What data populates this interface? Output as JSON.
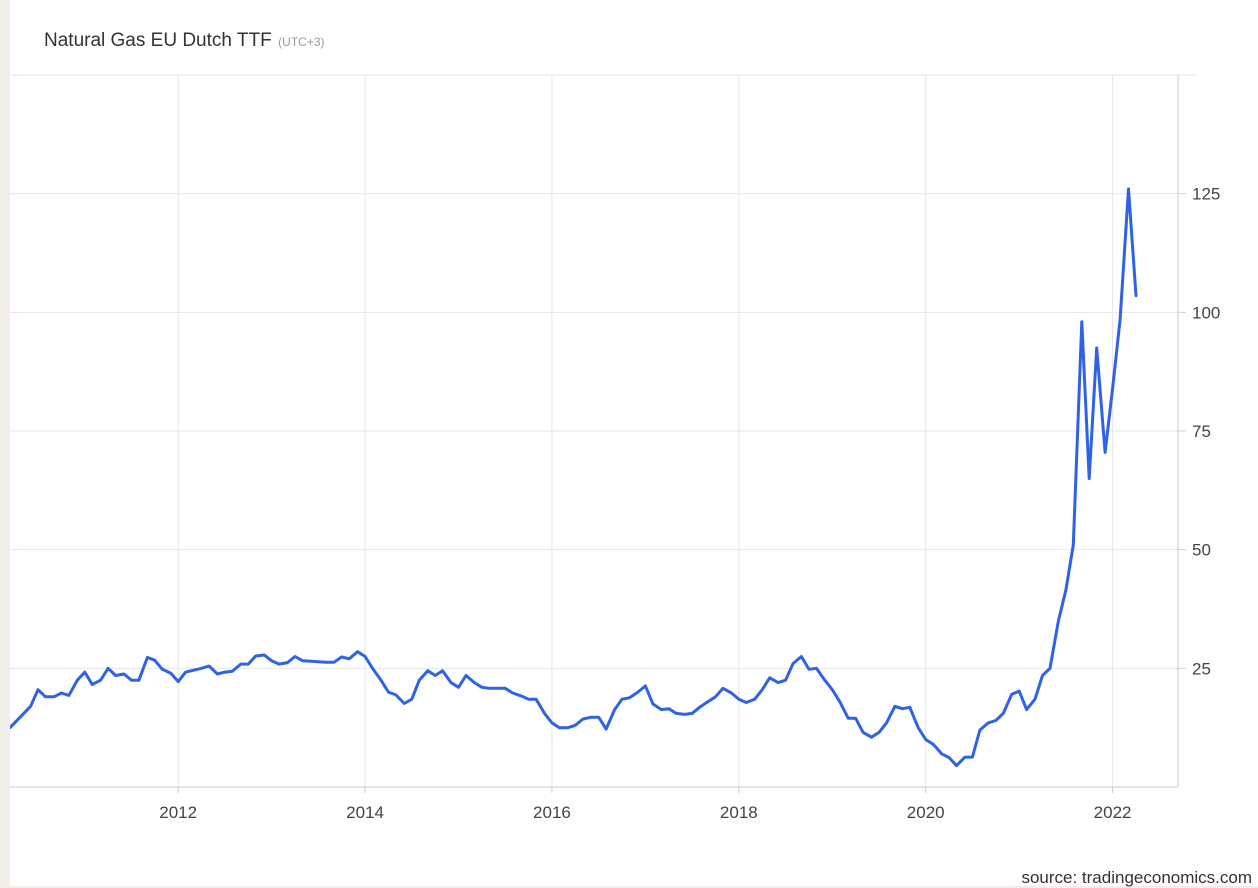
{
  "header": {
    "title": "Natural Gas EU Dutch TTF",
    "timezone": "(UTC+3)"
  },
  "footer": {
    "source": "source: tradingeconomics.com"
  },
  "colors": {
    "line": "#2f62e6",
    "grid": "#e6e6e6",
    "axis_text": "#444444",
    "background": "#ffffff"
  },
  "chart_data": {
    "type": "line",
    "title": "Natural Gas EU Dutch TTF",
    "xlabel": "",
    "ylabel": "",
    "x_ticks": [
      2012,
      2014,
      2016,
      2018,
      2020,
      2022
    ],
    "x_tick_labels": [
      "2012",
      "2014",
      "2016",
      "2018",
      "2020",
      "2022"
    ],
    "y_ticks": [
      25,
      50,
      75,
      100,
      125
    ],
    "y_tick_labels": [
      "25",
      "50",
      "75",
      "100",
      "125"
    ],
    "ylim": [
      0,
      150
    ],
    "xlim": [
      2010.2,
      2022.7
    ],
    "grid": true,
    "y_axis_position": "right",
    "legend": "none",
    "series": [
      {
        "x": [
          2010.2,
          2010.42,
          2010.5,
          2010.58,
          2010.67,
          2010.75,
          2010.83,
          2010.92,
          2011.0,
          2011.08,
          2011.17,
          2011.25,
          2011.33,
          2011.42,
          2011.5,
          2011.58,
          2011.67,
          2011.75,
          2011.83,
          2011.92,
          2012.0,
          2012.08,
          2012.25,
          2012.33,
          2012.42,
          2012.5,
          2012.58,
          2012.67,
          2012.75,
          2012.83,
          2012.92,
          2013.0,
          2013.08,
          2013.17,
          2013.25,
          2013.33,
          2013.42,
          2013.5,
          2013.58,
          2013.67,
          2013.75,
          2013.83,
          2013.92,
          2014.0,
          2014.08,
          2014.17,
          2014.25,
          2014.33,
          2014.42,
          2014.5,
          2014.58,
          2014.67,
          2014.75,
          2014.83,
          2014.92,
          2015.0,
          2015.08,
          2015.17,
          2015.25,
          2015.33,
          2015.42,
          2015.5,
          2015.58,
          2015.67,
          2015.75,
          2015.83,
          2015.92,
          2016.0,
          2016.08,
          2016.17,
          2016.25,
          2016.33,
          2016.42,
          2016.5,
          2016.58,
          2016.67,
          2016.75,
          2016.83,
          2016.92,
          2017.0,
          2017.08,
          2017.17,
          2017.25,
          2017.33,
          2017.42,
          2017.5,
          2017.58,
          2017.67,
          2017.75,
          2017.83,
          2017.92,
          2018.0,
          2018.08,
          2018.17,
          2018.25,
          2018.33,
          2018.42,
          2018.5,
          2018.58,
          2018.67,
          2018.75,
          2018.83,
          2018.92,
          2019.0,
          2019.08,
          2019.17,
          2019.25,
          2019.33,
          2019.42,
          2019.5,
          2019.58,
          2019.67,
          2019.75,
          2019.83,
          2019.92,
          2020.0,
          2020.08,
          2020.17,
          2020.25,
          2020.33,
          2020.42,
          2020.5,
          2020.58,
          2020.67,
          2020.75,
          2020.83,
          2020.92,
          2021.0,
          2021.08,
          2021.17,
          2021.25,
          2021.33,
          2021.42,
          2021.5,
          2021.58,
          2021.67,
          2021.75,
          2021.83,
          2021.92,
          2022.0,
          2022.08,
          2022.17,
          2022.25
        ],
        "y": [
          12.5,
          17.0,
          20.5,
          19.0,
          19.0,
          19.8,
          19.3,
          22.5,
          24.2,
          21.6,
          22.5,
          25.0,
          23.5,
          23.8,
          22.5,
          22.5,
          27.3,
          26.7,
          24.8,
          24.0,
          22.2,
          24.2,
          25.0,
          25.5,
          23.8,
          24.2,
          24.4,
          25.9,
          25.9,
          27.6,
          27.8,
          26.6,
          25.9,
          26.2,
          27.5,
          26.6,
          26.5,
          26.4,
          26.3,
          26.3,
          27.4,
          27.0,
          28.5,
          27.5,
          25.0,
          22.5,
          20.0,
          19.4,
          17.6,
          18.5,
          22.5,
          24.5,
          23.5,
          24.5,
          22.0,
          21.0,
          23.5,
          22.0,
          21.0,
          20.8,
          20.8,
          20.8,
          19.8,
          19.2,
          18.5,
          18.5,
          15.5,
          13.5,
          12.5,
          12.5,
          13.0,
          14.3,
          14.7,
          14.7,
          12.2,
          16.3,
          18.5,
          18.8,
          20.0,
          21.3,
          17.5,
          16.3,
          16.5,
          15.5,
          15.3,
          15.5,
          16.8,
          18.0,
          19.0,
          20.8,
          19.8,
          18.5,
          17.8,
          18.5,
          20.5,
          23.0,
          22.0,
          22.5,
          26.0,
          27.5,
          24.8,
          25.0,
          22.5,
          20.5,
          18.0,
          14.5,
          14.5,
          11.5,
          10.5,
          11.5,
          13.5,
          17.0,
          16.5,
          16.8,
          12.5,
          10.0,
          9.0,
          7.0,
          6.2,
          4.5,
          6.3,
          6.3,
          12.0,
          13.5,
          14.0,
          15.5,
          19.5,
          20.2,
          16.3,
          18.5,
          23.5,
          25.0,
          35.0,
          41.5,
          51.0,
          98.0,
          65.0,
          92.5,
          70.5,
          84.0,
          98.5,
          126.0,
          103.5
        ]
      }
    ]
  }
}
